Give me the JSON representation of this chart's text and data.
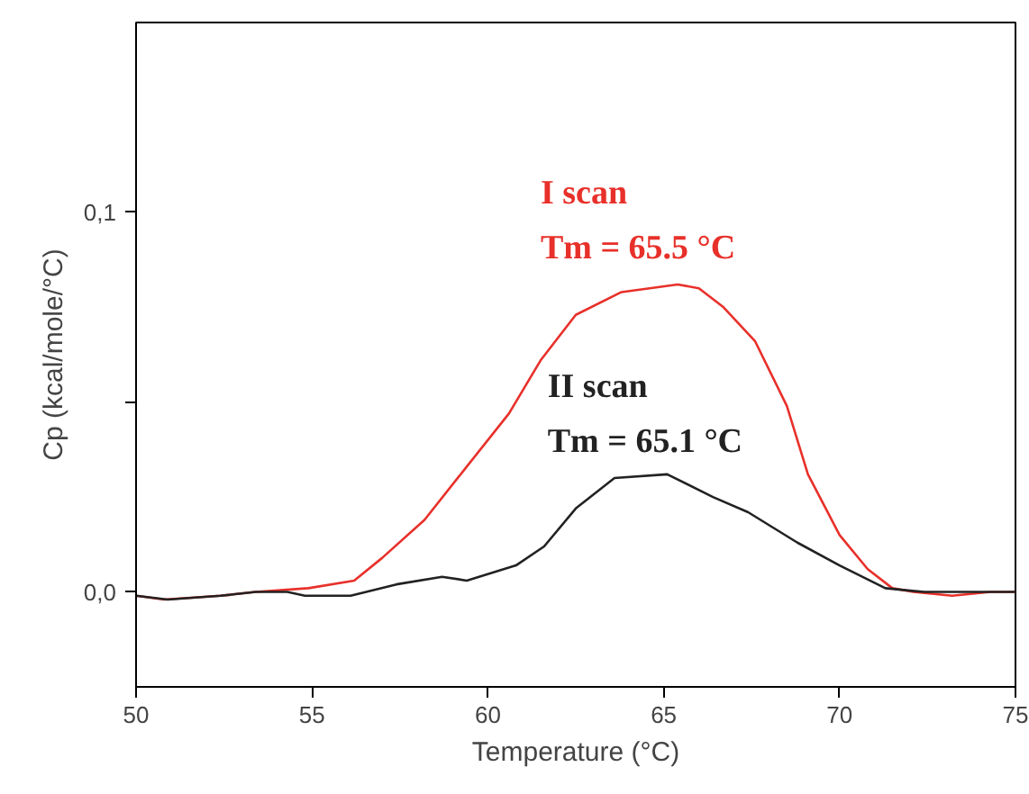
{
  "chart_data": {
    "type": "line",
    "xlabel": "Temperature (°C)",
    "ylabel": "Cp (kcal/mole/°C)",
    "xlim": [
      50,
      75
    ],
    "xticks": [
      50,
      55,
      60,
      65,
      70,
      75
    ],
    "ylim": [
      -0.025,
      0.15
    ],
    "yticks": [
      {
        "value": 0,
        "label": "0,0"
      },
      {
        "value": 0.05,
        "label": null
      },
      {
        "value": 0.1,
        "label": "0,1"
      }
    ],
    "grid": false,
    "annotations": [
      "Tm = 65.5 °C",
      "Tm = 65.1 °C"
    ],
    "series": [
      {
        "name": "I scan",
        "color": "#e8302a",
        "x": [
          50,
          50.8,
          52.4,
          53.4,
          54.9,
          56.2,
          57.0,
          58.2,
          59.4,
          60.6,
          61.5,
          62.5,
          63.8,
          65.4,
          66.0,
          66.7,
          67.6,
          68.5,
          69.1,
          70.0,
          70.8,
          71.5,
          72.1,
          73.2,
          74.3,
          75
        ],
        "values": [
          -0.001,
          -0.002,
          -0.001,
          0.0,
          0.001,
          0.003,
          0.009,
          0.019,
          0.033,
          0.047,
          0.061,
          0.073,
          0.079,
          0.081,
          0.08,
          0.075,
          0.066,
          0.049,
          0.031,
          0.015,
          0.006,
          0.001,
          0.0,
          -0.001,
          0.0,
          0.0
        ]
      },
      {
        "name": "II scan",
        "color": "#222222",
        "x": [
          50,
          50.9,
          52.4,
          53.4,
          54.3,
          54.8,
          56.1,
          57.4,
          58.7,
          59.4,
          60.8,
          61.6,
          62.5,
          63.6,
          65.1,
          66.4,
          67.4,
          68.8,
          70.0,
          71.3,
          72.4,
          73.8,
          75
        ],
        "values": [
          -0.001,
          -0.002,
          -0.001,
          0.0,
          0.0,
          -0.001,
          -0.001,
          0.002,
          0.004,
          0.003,
          0.007,
          0.012,
          0.022,
          0.03,
          0.031,
          0.025,
          0.021,
          0.013,
          0.007,
          0.001,
          0.0,
          0.0,
          0.0
        ]
      }
    ]
  }
}
